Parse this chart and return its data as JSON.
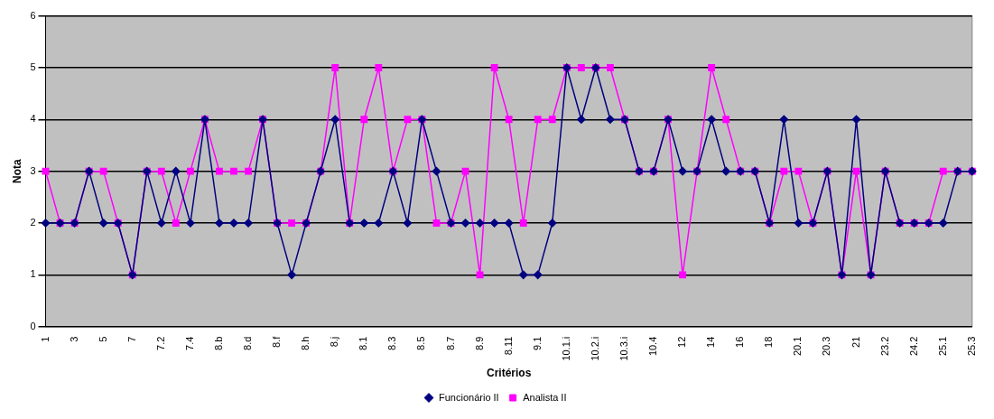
{
  "chart_data": {
    "type": "line",
    "xlabel": "Critérios",
    "ylabel": "Nota",
    "categories": [
      "1",
      null,
      "3",
      null,
      "5",
      null,
      "7",
      null,
      "7.2",
      null,
      "7.4",
      null,
      "8.b",
      null,
      "8.d",
      null,
      "8.f",
      null,
      "8.h",
      null,
      "8.j",
      null,
      "8.1",
      null,
      "8.3",
      null,
      "8.5",
      null,
      "8.7",
      null,
      "8.9",
      null,
      "8.11",
      null,
      "9.1",
      null,
      "10.1.i",
      null,
      "10.2.i",
      null,
      "10.3.i",
      null,
      "10.4",
      null,
      "12",
      null,
      "14",
      null,
      "16",
      null,
      "18",
      null,
      "20.1",
      null,
      "20.3",
      null,
      "21",
      null,
      "23.2",
      null,
      "24.2",
      null,
      "25.1",
      null,
      "25.3"
    ],
    "series": [
      {
        "name": "Funcionário II",
        "color": "#000080",
        "marker": "diamond",
        "values": [
          2,
          2,
          2,
          3,
          2,
          2,
          1,
          3,
          2,
          3,
          2,
          4,
          2,
          2,
          2,
          4,
          2,
          1,
          2,
          3,
          4,
          2,
          2,
          2,
          3,
          2,
          4,
          3,
          2,
          2,
          2,
          2,
          2,
          1,
          1,
          2,
          5,
          4,
          5,
          4,
          4,
          3,
          3,
          4,
          3,
          3,
          4,
          3,
          3,
          3,
          2,
          4,
          2,
          2,
          3,
          1,
          4,
          1,
          3,
          2,
          2,
          2,
          2,
          3,
          3
        ]
      },
      {
        "name": "Analista II",
        "color": "#ff00ff",
        "marker": "square",
        "values": [
          3,
          2,
          2,
          3,
          3,
          2,
          1,
          3,
          3,
          2,
          3,
          4,
          3,
          3,
          3,
          4,
          2,
          2,
          2,
          3,
          5,
          2,
          4,
          5,
          3,
          4,
          4,
          2,
          2,
          3,
          1,
          5,
          4,
          2,
          4,
          4,
          5,
          5,
          5,
          5,
          4,
          3,
          3,
          4,
          1,
          3,
          5,
          4,
          3,
          3,
          2,
          3,
          3,
          2,
          3,
          1,
          3,
          1,
          3,
          2,
          2,
          2,
          3,
          3,
          3
        ]
      }
    ],
    "ylim": [
      0,
      6
    ],
    "yticks": [
      0,
      1,
      2,
      3,
      4,
      5,
      6
    ],
    "grid": "y",
    "legend": "bottom",
    "line_style": "solid"
  }
}
